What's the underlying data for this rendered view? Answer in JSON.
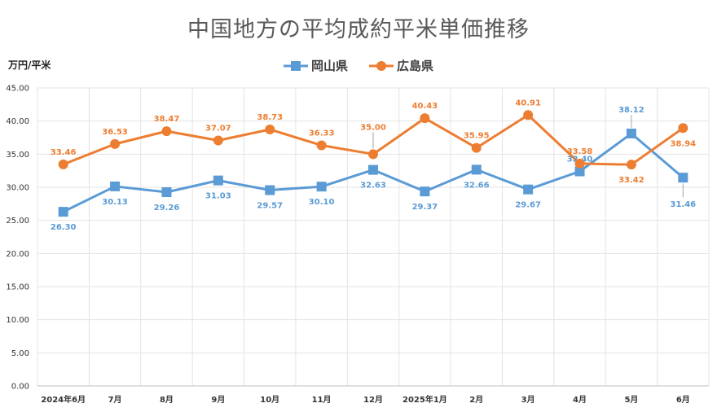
{
  "chart_data": {
    "type": "line",
    "title": "中国地方の平均成約平米単価推移",
    "ylabel": "万円/平米",
    "xlabel": "",
    "categories": [
      "2024年6月",
      "7月",
      "8月",
      "9月",
      "10月",
      "11月",
      "12月",
      "2025年1月",
      "2月",
      "3月",
      "4月",
      "5月",
      "6月"
    ],
    "ylim": [
      0,
      45
    ],
    "yticks": [
      "0.00",
      "5.00",
      "10.00",
      "15.00",
      "20.00",
      "25.00",
      "30.00",
      "35.00",
      "40.00",
      "45.00"
    ],
    "grid": true,
    "legend_position": "top-center",
    "series": [
      {
        "name": "岡山県",
        "color": "#5b9bd5",
        "marker": "square",
        "values": [
          26.3,
          30.13,
          29.26,
          31.03,
          29.57,
          30.1,
          32.63,
          29.37,
          32.66,
          29.67,
          32.4,
          38.12,
          31.46
        ],
        "labels": [
          "26.30",
          "30.13",
          "29.26",
          "31.03",
          "29.57",
          "30.10",
          "32.63",
          "29.37",
          "32.66",
          "29.67",
          "32.40",
          "38.12",
          "31.46"
        ]
      },
      {
        "name": "広島県",
        "color": "#ed7d31",
        "marker": "circle",
        "values": [
          33.46,
          36.53,
          38.47,
          37.07,
          38.73,
          36.33,
          35.0,
          40.43,
          35.95,
          40.91,
          33.58,
          33.42,
          38.94
        ],
        "labels": [
          "33.46",
          "36.53",
          "38.47",
          "37.07",
          "38.73",
          "36.33",
          "35.00",
          "40.43",
          "35.95",
          "40.91",
          "33.58",
          "33.42",
          "38.94"
        ]
      }
    ]
  }
}
